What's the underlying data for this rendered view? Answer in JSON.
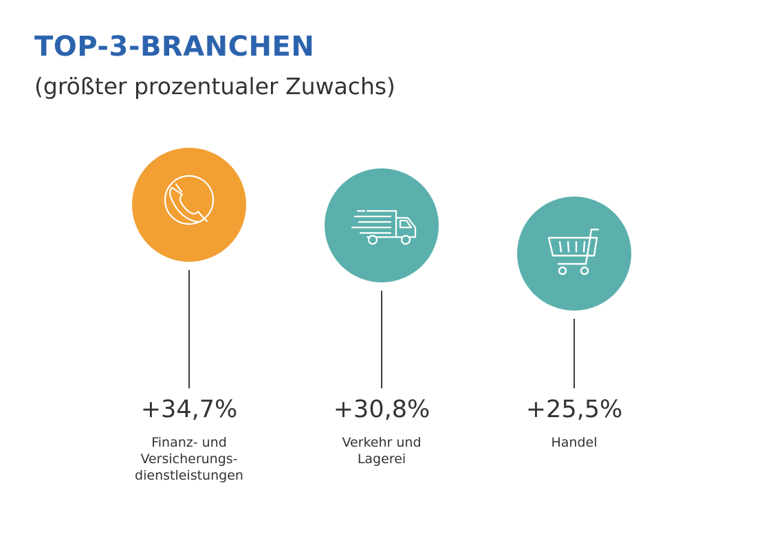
{
  "title": "TOP-3-BRANCHEN",
  "subtitle": "(größter prozentualer Zuwachs)",
  "colors": {
    "title": "#2c63ad",
    "orange": "#f29f33",
    "teal": "#5bb0ad",
    "text": "#333333",
    "line": "#3a3a3a"
  },
  "chart_data": {
    "type": "bar",
    "title": "TOP-3-BRANCHEN",
    "subtitle": "(größter prozentualer Zuwachs)",
    "categories": [
      "Finanz- und Versicherungsdienstleistungen",
      "Verkehr und Lagerei",
      "Handel"
    ],
    "values": [
      34.7,
      30.8,
      25.5
    ],
    "value_labels": [
      "+34,7%",
      "+30,8%",
      "+25,5%"
    ],
    "category_lines": [
      [
        "Finanz- und",
        "Versicherungs-",
        "dienstleistungen"
      ],
      [
        "Verkehr und",
        "Lagerei"
      ],
      [
        "Handel"
      ]
    ],
    "icons": [
      "phone-icon",
      "truck-icon",
      "shopping-cart-icon"
    ],
    "marker_colors": [
      "#f29f33",
      "#5bb0ad",
      "#5bb0ad"
    ],
    "grid": false
  }
}
